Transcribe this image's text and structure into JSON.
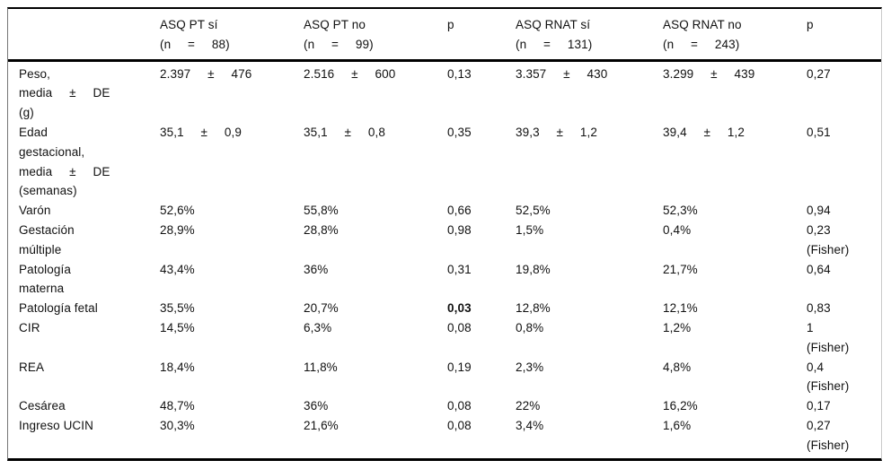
{
  "colors": {
    "background": "#ffffff",
    "text": "#111111",
    "border": "#000000"
  },
  "table": {
    "columns": [
      {
        "id": "rowlabel",
        "header_lines": []
      },
      {
        "id": "asq-pt-si",
        "header_lines": [
          {
            "t": "ASQ PT sí"
          },
          {
            "t": "(n = 88)",
            "spread": true
          }
        ]
      },
      {
        "id": "asq-pt-no",
        "header_lines": [
          {
            "t": "ASQ PT no"
          },
          {
            "t": "(n = 99)",
            "spread": true
          }
        ]
      },
      {
        "id": "p-pt",
        "header_lines": [
          {
            "t": "p"
          }
        ]
      },
      {
        "id": "asq-rnat-si",
        "header_lines": [
          {
            "t": "ASQ RNAT sí"
          },
          {
            "t": "(n = 131)",
            "spread": true
          }
        ]
      },
      {
        "id": "asq-rnat-no",
        "header_lines": [
          {
            "t": "ASQ RNAT no"
          },
          {
            "t": "(n = 243)",
            "spread": true
          }
        ]
      },
      {
        "id": "p-rnat",
        "header_lines": [
          {
            "t": "p"
          }
        ]
      }
    ],
    "rows": [
      {
        "id": "peso",
        "cells": [
          [
            {
              "t": "Peso,"
            },
            {
              "t": "media ± DE",
              "spread": true
            },
            {
              "t": "(g)"
            }
          ],
          [
            {
              "t": "2.397 ± 476",
              "spread": true
            }
          ],
          [
            {
              "t": "2.516 ± 600",
              "spread": true
            }
          ],
          [
            {
              "t": "0,13"
            }
          ],
          [
            {
              "t": "3.357 ± 430",
              "spread": true
            }
          ],
          [
            {
              "t": "3.299 ± 439",
              "spread": true
            }
          ],
          [
            {
              "t": "0,27"
            }
          ]
        ]
      },
      {
        "id": "edad-gestacional",
        "cells": [
          [
            {
              "t": "Edad"
            },
            {
              "t": "gestacional,"
            },
            {
              "t": "media ± DE",
              "spread": true
            },
            {
              "t": "(semanas)"
            }
          ],
          [
            {
              "t": "35,1 ± 0,9",
              "spread": true
            }
          ],
          [
            {
              "t": "35,1 ± 0,8",
              "spread": true
            }
          ],
          [
            {
              "t": "0,35"
            }
          ],
          [
            {
              "t": "39,3 ± 1,2",
              "spread": true
            }
          ],
          [
            {
              "t": "39,4 ± 1,2",
              "spread": true
            }
          ],
          [
            {
              "t": "0,51"
            }
          ]
        ]
      },
      {
        "id": "varon",
        "cells": [
          [
            {
              "t": "Varón"
            }
          ],
          [
            {
              "t": "52,6%"
            }
          ],
          [
            {
              "t": "55,8%"
            }
          ],
          [
            {
              "t": "0,66"
            }
          ],
          [
            {
              "t": "52,5%"
            }
          ],
          [
            {
              "t": "52,3%"
            }
          ],
          [
            {
              "t": "0,94"
            }
          ]
        ]
      },
      {
        "id": "gestacion-multiple",
        "cells": [
          [
            {
              "t": "Gestación"
            },
            {
              "t": "múltiple"
            }
          ],
          [
            {
              "t": "28,9%"
            }
          ],
          [
            {
              "t": "28,8%"
            }
          ],
          [
            {
              "t": "0,98"
            }
          ],
          [
            {
              "t": "1,5%"
            }
          ],
          [
            {
              "t": "0,4%"
            }
          ],
          [
            {
              "t": "0,23"
            },
            {
              "t": "(Fisher)"
            }
          ]
        ]
      },
      {
        "id": "patologia-materna",
        "cells": [
          [
            {
              "t": "Patología"
            },
            {
              "t": "materna"
            }
          ],
          [
            {
              "t": "43,4%"
            }
          ],
          [
            {
              "t": "36%"
            }
          ],
          [
            {
              "t": "0,31"
            }
          ],
          [
            {
              "t": "19,8%"
            }
          ],
          [
            {
              "t": "21,7%"
            }
          ],
          [
            {
              "t": "0,64"
            }
          ]
        ]
      },
      {
        "id": "patologia-fetal",
        "cells": [
          [
            {
              "t": "Patología fetal"
            }
          ],
          [
            {
              "t": "35,5%"
            }
          ],
          [
            {
              "t": "20,7%"
            }
          ],
          [
            {
              "t": "0,03",
              "bold": true
            }
          ],
          [
            {
              "t": "12,8%"
            }
          ],
          [
            {
              "t": "12,1%"
            }
          ],
          [
            {
              "t": "0,83"
            }
          ]
        ]
      },
      {
        "id": "cir",
        "cells": [
          [
            {
              "t": "CIR"
            }
          ],
          [
            {
              "t": "14,5%"
            }
          ],
          [
            {
              "t": "6,3%"
            }
          ],
          [
            {
              "t": "0,08"
            }
          ],
          [
            {
              "t": "0,8%"
            }
          ],
          [
            {
              "t": "1,2%"
            }
          ],
          [
            {
              "t": "1"
            },
            {
              "t": "(Fisher)"
            }
          ]
        ]
      },
      {
        "id": "rea",
        "cells": [
          [
            {
              "t": "REA"
            }
          ],
          [
            {
              "t": "18,4%"
            }
          ],
          [
            {
              "t": "11,8%"
            }
          ],
          [
            {
              "t": "0,19"
            }
          ],
          [
            {
              "t": "2,3%"
            }
          ],
          [
            {
              "t": "4,8%"
            }
          ],
          [
            {
              "t": "0,4"
            },
            {
              "t": "(Fisher)"
            }
          ]
        ]
      },
      {
        "id": "cesarea",
        "cells": [
          [
            {
              "t": "Cesárea"
            }
          ],
          [
            {
              "t": "48,7%"
            }
          ],
          [
            {
              "t": "36%"
            }
          ],
          [
            {
              "t": "0,08"
            }
          ],
          [
            {
              "t": "22%"
            }
          ],
          [
            {
              "t": "16,2%"
            }
          ],
          [
            {
              "t": "0,17"
            }
          ]
        ]
      },
      {
        "id": "ingreso-ucin",
        "cells": [
          [
            {
              "t": "Ingreso UCIN"
            }
          ],
          [
            {
              "t": "30,3%"
            }
          ],
          [
            {
              "t": "21,6%"
            }
          ],
          [
            {
              "t": "0,08"
            }
          ],
          [
            {
              "t": "3,4%"
            }
          ],
          [
            {
              "t": "1,6%"
            }
          ],
          [
            {
              "t": "0,27"
            },
            {
              "t": "(Fisher)"
            }
          ]
        ]
      }
    ]
  }
}
